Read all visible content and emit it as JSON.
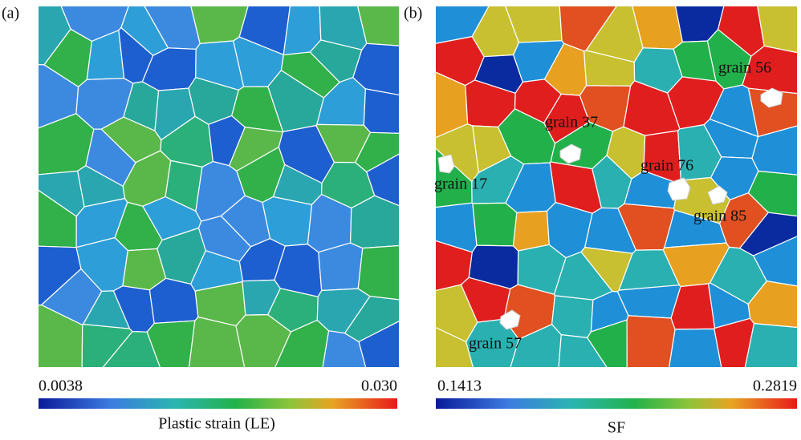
{
  "panels": [
    {
      "label": "(a)",
      "colorbar": {
        "min": "0.0038",
        "max": "0.030",
        "title": "Plastic strain (LE)"
      },
      "annotations": []
    },
    {
      "label": "(b)",
      "colorbar": {
        "min": "0.1413",
        "max": "0.2819",
        "title": "SF"
      },
      "annotations": [
        "grain 56",
        "grain 37",
        "grain 76",
        "grain 17",
        "grain 85",
        "grain 57"
      ]
    }
  ]
}
